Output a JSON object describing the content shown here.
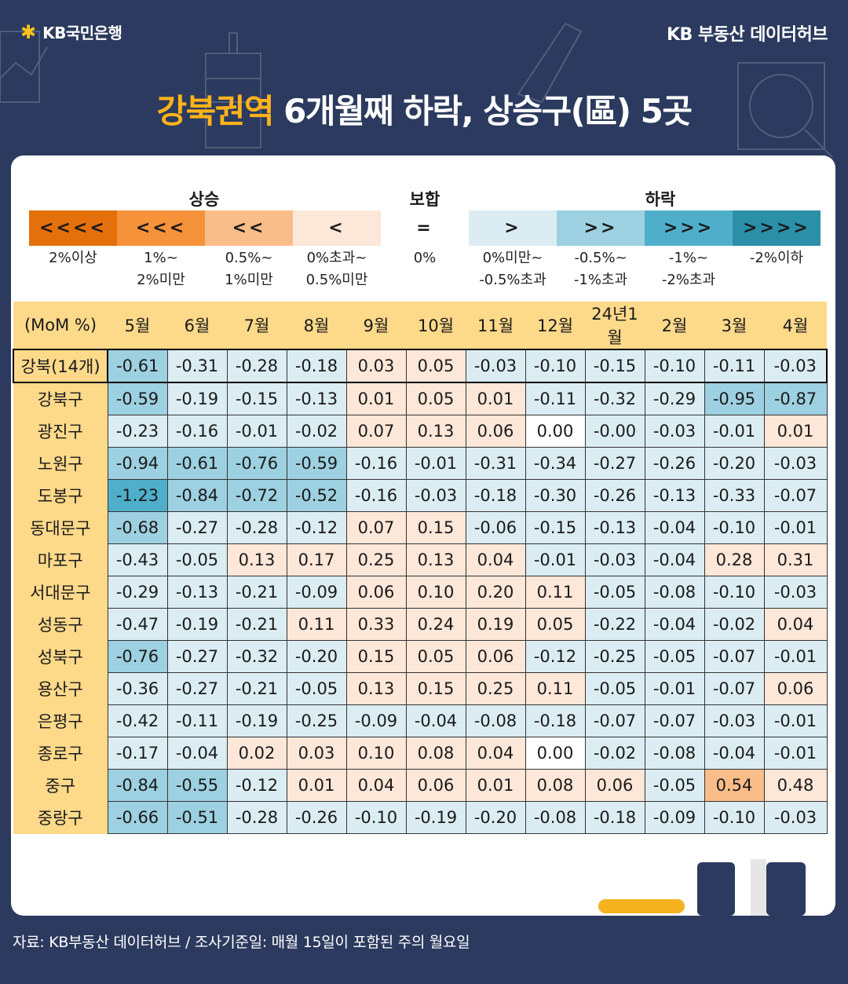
{
  "header": {
    "bank_logo_text": "KB국민은행",
    "hub_label": "KB 부동산  데이터허브"
  },
  "title": {
    "highlight": "강북권역",
    "rest": " 6개월째 하락, 상승구(區) 5곳"
  },
  "legend": {
    "rise_header": "상승",
    "flat_header": "보합",
    "fall_header": "하락",
    "items": [
      {
        "symbol": "<<<<",
        "label": "2%이상",
        "color": "#e3700a"
      },
      {
        "symbol": "<<<",
        "label": "1%~\n2%미만",
        "color": "#f5923a"
      },
      {
        "symbol": "<<",
        "label": "0.5%~\n1%미만",
        "color": "#f9bd8a"
      },
      {
        "symbol": "<",
        "label": "0%초과~\n0.5%미만",
        "color": "#fde7d8"
      },
      {
        "symbol": "=",
        "label": "0%",
        "color": "#ffffff"
      },
      {
        "symbol": ">",
        "label": "0%미만~\n-0.5%초과",
        "color": "#dbedf3"
      },
      {
        "symbol": ">>",
        "label": "-0.5%~\n-1%초과",
        "color": "#9dd0e0"
      },
      {
        "symbol": ">>>",
        "label": "-1%~\n-2%초과",
        "color": "#4fafcb"
      },
      {
        "symbol": ">>>>",
        "label": "-2%이하",
        "color": "#2b8fa8"
      }
    ]
  },
  "chart_data": {
    "type": "table",
    "unit_label": "(MoM %)",
    "columns": [
      "5월",
      "6월",
      "7월",
      "8월",
      "9월",
      "10월",
      "11월",
      "12월",
      "24년1월",
      "2월",
      "3월",
      "4월"
    ],
    "rows": [
      {
        "name": "강북(14개)",
        "values": [
          "-0.61",
          "-0.31",
          "-0.28",
          "-0.18",
          "0.03",
          "0.05",
          "-0.03",
          "-0.10",
          "-0.15",
          "-0.10",
          "-0.11",
          "-0.03"
        ]
      },
      {
        "name": "강북구",
        "values": [
          "-0.59",
          "-0.19",
          "-0.15",
          "-0.13",
          "0.01",
          "0.05",
          "0.01",
          "-0.11",
          "-0.32",
          "-0.29",
          "-0.95",
          "-0.87"
        ]
      },
      {
        "name": "광진구",
        "values": [
          "-0.23",
          "-0.16",
          "-0.01",
          "-0.02",
          "0.07",
          "0.13",
          "0.06",
          "0.00",
          "-0.00",
          "-0.03",
          "-0.01",
          "0.01"
        ]
      },
      {
        "name": "노원구",
        "values": [
          "-0.94",
          "-0.61",
          "-0.76",
          "-0.59",
          "-0.16",
          "-0.01",
          "-0.31",
          "-0.34",
          "-0.27",
          "-0.26",
          "-0.20",
          "-0.03"
        ]
      },
      {
        "name": "도봉구",
        "values": [
          "-1.23",
          "-0.84",
          "-0.72",
          "-0.52",
          "-0.16",
          "-0.03",
          "-0.18",
          "-0.30",
          "-0.26",
          "-0.13",
          "-0.33",
          "-0.07"
        ]
      },
      {
        "name": "동대문구",
        "values": [
          "-0.68",
          "-0.27",
          "-0.28",
          "-0.12",
          "0.07",
          "0.15",
          "-0.06",
          "-0.15",
          "-0.13",
          "-0.04",
          "-0.10",
          "-0.01"
        ]
      },
      {
        "name": "마포구",
        "values": [
          "-0.43",
          "-0.05",
          "0.13",
          "0.17",
          "0.25",
          "0.13",
          "0.04",
          "-0.01",
          "-0.03",
          "-0.04",
          "0.28",
          "0.31"
        ]
      },
      {
        "name": "서대문구",
        "values": [
          "-0.29",
          "-0.13",
          "-0.21",
          "-0.09",
          "0.06",
          "0.10",
          "0.20",
          "0.11",
          "-0.05",
          "-0.08",
          "-0.10",
          "-0.03"
        ]
      },
      {
        "name": "성동구",
        "values": [
          "-0.47",
          "-0.19",
          "-0.21",
          "0.11",
          "0.33",
          "0.24",
          "0.19",
          "0.05",
          "-0.22",
          "-0.04",
          "-0.02",
          "0.04"
        ]
      },
      {
        "name": "성북구",
        "values": [
          "-0.76",
          "-0.27",
          "-0.32",
          "-0.20",
          "0.15",
          "0.05",
          "0.06",
          "-0.12",
          "-0.25",
          "-0.05",
          "-0.07",
          "-0.01"
        ]
      },
      {
        "name": "용산구",
        "values": [
          "-0.36",
          "-0.27",
          "-0.21",
          "-0.05",
          "0.13",
          "0.15",
          "0.25",
          "0.11",
          "-0.05",
          "-0.01",
          "-0.07",
          "0.06"
        ]
      },
      {
        "name": "은평구",
        "values": [
          "-0.42",
          "-0.11",
          "-0.19",
          "-0.25",
          "-0.09",
          "-0.04",
          "-0.08",
          "-0.18",
          "-0.07",
          "-0.07",
          "-0.03",
          "-0.01"
        ]
      },
      {
        "name": "종로구",
        "values": [
          "-0.17",
          "-0.04",
          "0.02",
          "0.03",
          "0.10",
          "0.08",
          "0.04",
          "0.00",
          "-0.02",
          "-0.08",
          "-0.04",
          "-0.01"
        ]
      },
      {
        "name": "중구",
        "values": [
          "-0.84",
          "-0.55",
          "-0.12",
          "0.01",
          "0.04",
          "0.06",
          "0.01",
          "0.08",
          "0.06",
          "-0.05",
          "0.54",
          "0.48"
        ]
      },
      {
        "name": "중랑구",
        "values": [
          "-0.66",
          "-0.51",
          "-0.28",
          "-0.26",
          "-0.10",
          "-0.19",
          "-0.20",
          "-0.08",
          "-0.18",
          "-0.09",
          "-0.10",
          "-0.03"
        ]
      }
    ]
  },
  "footer": {
    "source": "자료: KB부동산 데이터허브 / 조사기준일: 매월 15일이 포함된 주의 월요일"
  }
}
